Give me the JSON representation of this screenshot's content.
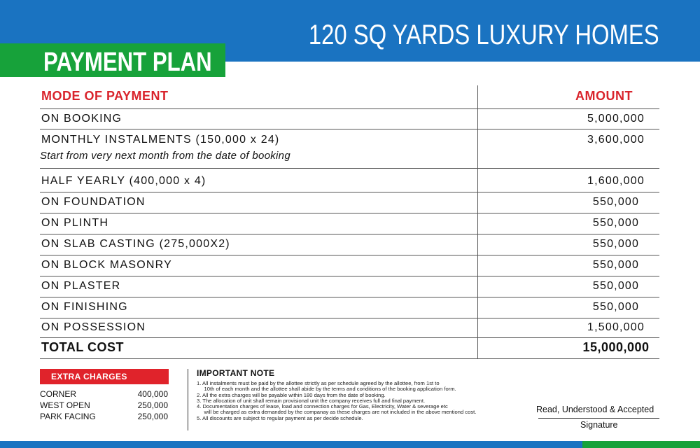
{
  "header": {
    "title": "120 SQ YARDS LUXURY HOMES",
    "subtitle": "PAYMENT PLAN"
  },
  "table": {
    "col_mode": "MODE OF PAYMENT",
    "col_amount": "AMOUNT",
    "rows": [
      {
        "mode": "ON BOOKING",
        "amount": "5,000,000"
      },
      {
        "mode": "MONTHLY INSTALMENTS (150,000 x 24)",
        "note": "Start from very next month from the date of booking",
        "amount": "3,600,000"
      },
      {
        "mode": "HALF YEARLY (400,000 x 4)",
        "amount": "1,600,000"
      },
      {
        "mode": "ON FOUNDATION",
        "amount": "550,000"
      },
      {
        "mode": "ON PLINTH",
        "amount": "550,000"
      },
      {
        "mode": "ON SLAB CASTING (275,000X2)",
        "amount": "550,000"
      },
      {
        "mode": "ON BLOCK MASONRY",
        "amount": "550,000"
      },
      {
        "mode": "ON PLASTER",
        "amount": "550,000"
      },
      {
        "mode": "ON FINISHING",
        "amount": "550,000"
      },
      {
        "mode": "ON POSSESSION",
        "amount": "1,500,000"
      }
    ],
    "total_label": "TOTAL COST",
    "total_amount": "15,000,000"
  },
  "extra_charges": {
    "title": "EXTRA CHARGES",
    "items": [
      {
        "name": "CORNER",
        "value": "400,000"
      },
      {
        "name": "WEST OPEN",
        "value": "250,000"
      },
      {
        "name": "PARK FACING",
        "value": "250,000"
      }
    ]
  },
  "notes": {
    "title": "IMPORTANT NOTE",
    "lines": [
      "1.  All instalments must be paid by the allottee strictly as per schedule agreed by the allottee, from 1st to",
      "     10th of each month and the allottee shall abide by the terms and conditions of the booking application form.",
      "2.  All the extra charges will be payable within 180 days from the date of booking.",
      "3.  The allocation of unit shall remain provisional unit the company receives full and final payment.",
      "4.  Documentation charges of lease, load and connection charges for Gas, Electricity, Water & severage etc",
      "     will be charged as extra demanded by the companay as these charges are not included in the above mentiond cost.",
      "5.  All discounts are subject to regular payment as per decide schedule."
    ]
  },
  "signature": {
    "ack": "Read, Understood & Accepted",
    "label": "Signature"
  },
  "colors": {
    "blue": "#1a73c1",
    "green": "#17a23a",
    "red": "#e0232b"
  }
}
